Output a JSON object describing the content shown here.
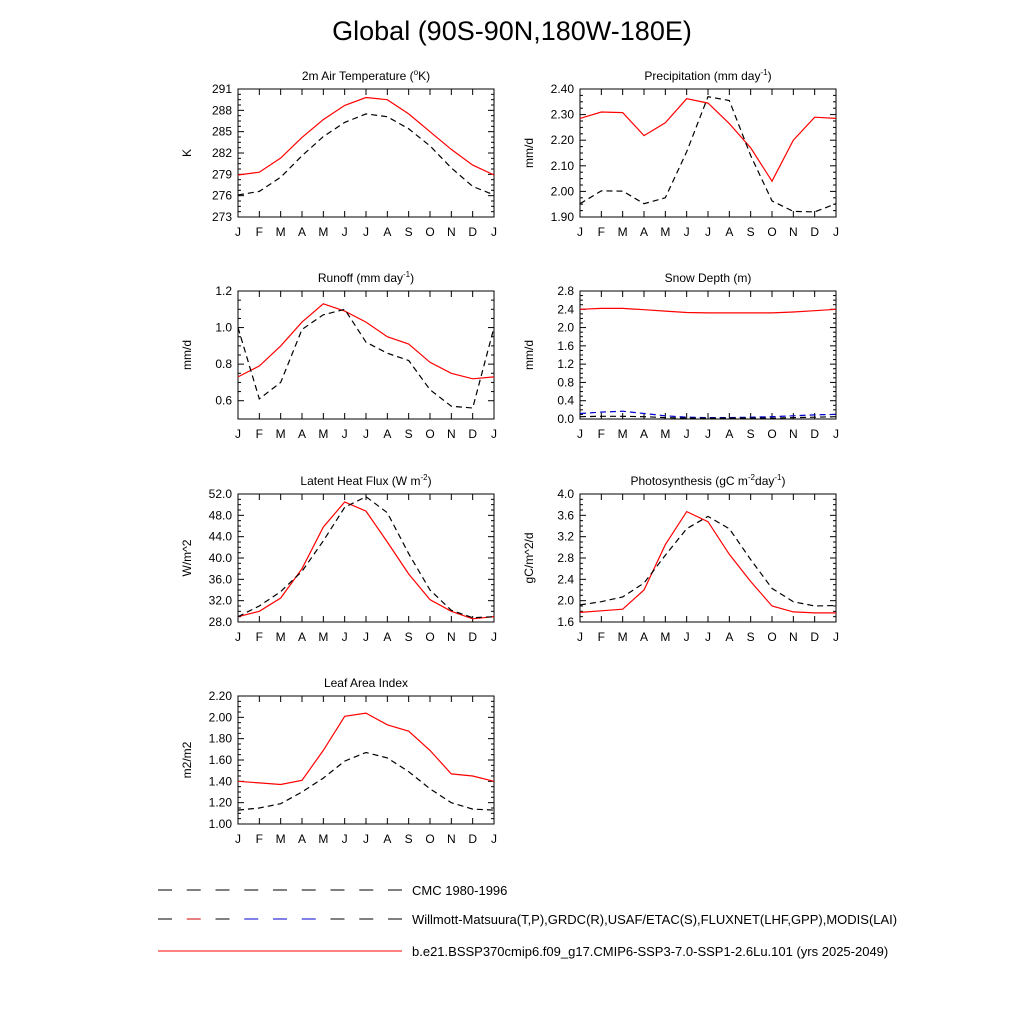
{
  "title": "Global (90S-90N,180W-180E)",
  "colors": {
    "model": "#ff0000",
    "obs": "#000000",
    "obs_alt": "#0000cc"
  },
  "months": [
    "J",
    "F",
    "M",
    "A",
    "M",
    "J",
    "J",
    "A",
    "S",
    "O",
    "N",
    "D",
    "J"
  ],
  "legend": [
    {
      "label": "CMC 1980-1996",
      "style": "dashed",
      "colors": [
        "#000000"
      ]
    },
    {
      "label": "Willmott-Matsuura(T,P),GRDC(R),USAF/ETAC(S),FLUXNET(LHF,GPP),MODIS(LAI)",
      "style": "dashed",
      "colors": [
        "#000000",
        "#cc0000",
        "#0000cc"
      ]
    },
    {
      "label": "b.e21.BSSP370cmip6.f09_g17.CMIP6-SSP3-7.0-SSP1-2.6Lu.101 (yrs 2025-2049)",
      "style": "solid",
      "colors": [
        "#ff0000"
      ]
    }
  ],
  "chart_data": [
    {
      "type": "line",
      "title": "2m Air Temperature (",
      "title_sup": "o",
      "title_after": "K)",
      "ylabel": "K",
      "ylim": [
        273,
        291
      ],
      "yticks": [
        "273",
        "276",
        "279",
        "282",
        "285",
        "288",
        "291"
      ],
      "x": [
        "J",
        "F",
        "M",
        "A",
        "M",
        "J",
        "J",
        "A",
        "S",
        "O",
        "N",
        "D",
        "J"
      ],
      "series": [
        {
          "role": "model",
          "style": "solid",
          "color": "#ff0000",
          "values": [
            278.9,
            279.3,
            281.3,
            284.2,
            286.7,
            288.7,
            289.8,
            289.5,
            287.5,
            285.0,
            282.5,
            280.3,
            278.9
          ]
        },
        {
          "role": "obs",
          "style": "dashed",
          "color": "#000000",
          "values": [
            276.1,
            276.6,
            278.6,
            281.6,
            284.3,
            286.3,
            287.5,
            287.1,
            285.4,
            283.0,
            279.9,
            277.3,
            276.1
          ]
        }
      ]
    },
    {
      "type": "line",
      "title": "Precipitation (mm day",
      "title_sup": "-1",
      "title_after": ")",
      "ylabel": "mm/d",
      "ylim": [
        1.9,
        2.4
      ],
      "yticks": [
        "1.90",
        "2.00",
        "2.10",
        "2.20",
        "2.30",
        "2.40"
      ],
      "x": [
        "J",
        "F",
        "M",
        "A",
        "M",
        "J",
        "J",
        "A",
        "S",
        "O",
        "N",
        "D",
        "J"
      ],
      "series": [
        {
          "role": "model",
          "style": "solid",
          "color": "#ff0000",
          "values": [
            2.285,
            2.31,
            2.308,
            2.218,
            2.268,
            2.362,
            2.345,
            2.265,
            2.17,
            2.04,
            2.2,
            2.29,
            2.285
          ]
        },
        {
          "role": "obs",
          "style": "dashed",
          "color": "#000000",
          "values": [
            1.952,
            2.002,
            2.001,
            1.952,
            1.975,
            2.155,
            2.37,
            2.355,
            2.14,
            1.963,
            1.922,
            1.92,
            1.952
          ]
        }
      ]
    },
    {
      "type": "line",
      "title": "Runoff (mm day",
      "title_sup": "-1",
      "title_after": ")",
      "ylabel": "mm/d",
      "ylim": [
        0.5,
        1.2
      ],
      "yticks": [
        "0.6",
        "0.8",
        "1.0",
        "1.2"
      ],
      "ytickvals": [
        0.6,
        0.8,
        1.0,
        1.2
      ],
      "x": [
        "J",
        "F",
        "M",
        "A",
        "M",
        "J",
        "J",
        "A",
        "S",
        "O",
        "N",
        "D",
        "J"
      ],
      "series": [
        {
          "role": "model",
          "style": "solid",
          "color": "#ff0000",
          "values": [
            0.73,
            0.79,
            0.9,
            1.03,
            1.13,
            1.09,
            1.03,
            0.95,
            0.91,
            0.81,
            0.75,
            0.72,
            0.73
          ]
        },
        {
          "role": "obs",
          "style": "dashed",
          "color": "#000000",
          "values": [
            1.0,
            0.61,
            0.7,
            0.99,
            1.07,
            1.1,
            0.92,
            0.86,
            0.82,
            0.66,
            0.57,
            0.56,
            1.0
          ]
        }
      ]
    },
    {
      "type": "line",
      "title": "Snow Depth (m)",
      "title_sup": "",
      "title_after": "",
      "ylabel": "mm/d",
      "ylim": [
        0.0,
        2.8
      ],
      "yticks": [
        "0.0",
        "0.4",
        "0.8",
        "1.2",
        "1.6",
        "2.0",
        "2.4",
        "2.8"
      ],
      "x": [
        "J",
        "F",
        "M",
        "A",
        "M",
        "J",
        "J",
        "A",
        "S",
        "O",
        "N",
        "D",
        "J"
      ],
      "series": [
        {
          "role": "model",
          "style": "solid",
          "color": "#ff0000",
          "values": [
            2.4,
            2.42,
            2.42,
            2.39,
            2.36,
            2.33,
            2.32,
            2.32,
            2.32,
            2.32,
            2.34,
            2.37,
            2.4
          ]
        },
        {
          "role": "obs_alt",
          "style": "dashed",
          "color": "#0000cc",
          "values": [
            0.12,
            0.15,
            0.17,
            0.12,
            0.07,
            0.04,
            0.03,
            0.03,
            0.04,
            0.05,
            0.07,
            0.09,
            0.1
          ]
        },
        {
          "role": "obs",
          "style": "dashed",
          "color": "#000000",
          "values": [
            0.05,
            0.06,
            0.06,
            0.05,
            0.03,
            0.02,
            0.02,
            0.02,
            0.02,
            0.02,
            0.03,
            0.04,
            0.05
          ]
        }
      ]
    },
    {
      "type": "line",
      "title": "Latent Heat Flux (W m",
      "title_sup": "-2",
      "title_after": ")",
      "ylabel": "W/m^2",
      "ylim": [
        28,
        52
      ],
      "yticks": [
        "28.0",
        "32.0",
        "36.0",
        "40.0",
        "44.0",
        "48.0",
        "52.0"
      ],
      "x": [
        "J",
        "F",
        "M",
        "A",
        "M",
        "J",
        "J",
        "A",
        "S",
        "O",
        "N",
        "D",
        "J"
      ],
      "series": [
        {
          "role": "model",
          "style": "solid",
          "color": "#ff0000",
          "values": [
            29.0,
            30.0,
            32.5,
            38.0,
            45.8,
            50.5,
            48.8,
            43.0,
            37.0,
            32.2,
            30.0,
            28.6,
            29.0
          ]
        },
        {
          "role": "obs",
          "style": "dashed",
          "color": "#000000",
          "values": [
            29.0,
            31.0,
            33.7,
            37.5,
            43.2,
            49.5,
            51.5,
            48.5,
            40.8,
            34.0,
            30.2,
            28.8,
            29.0
          ]
        }
      ]
    },
    {
      "type": "line",
      "title": "Photosynthesis (gC m",
      "title_sup": "-2",
      "title_after": "day",
      "title_sup2": "-1",
      "title_after2": ")",
      "ylabel": "gC/m^2/d",
      "ylim": [
        1.6,
        4.0
      ],
      "yticks": [
        "1.6",
        "2.0",
        "2.4",
        "2.8",
        "3.2",
        "3.6",
        "4.0"
      ],
      "x": [
        "J",
        "F",
        "M",
        "A",
        "M",
        "J",
        "J",
        "A",
        "S",
        "O",
        "N",
        "D",
        "J"
      ],
      "series": [
        {
          "role": "model",
          "style": "solid",
          "color": "#ff0000",
          "values": [
            1.78,
            1.81,
            1.84,
            2.2,
            3.05,
            3.67,
            3.48,
            2.87,
            2.36,
            1.9,
            1.79,
            1.77,
            1.77
          ]
        },
        {
          "role": "obs",
          "style": "dashed",
          "color": "#000000",
          "values": [
            1.92,
            1.98,
            2.07,
            2.33,
            2.85,
            3.35,
            3.58,
            3.35,
            2.77,
            2.23,
            1.98,
            1.9,
            1.91
          ]
        }
      ]
    },
    {
      "type": "line",
      "title": "Leaf Area Index",
      "title_sup": "",
      "title_after": "",
      "ylabel": "m2/m2",
      "ylim": [
        1.0,
        2.2
      ],
      "yticks": [
        "1.00",
        "1.20",
        "1.40",
        "1.60",
        "1.80",
        "2.00",
        "2.20"
      ],
      "x": [
        "J",
        "F",
        "M",
        "A",
        "M",
        "J",
        "J",
        "A",
        "S",
        "O",
        "N",
        "D",
        "J"
      ],
      "series": [
        {
          "role": "model",
          "style": "solid",
          "color": "#ff0000",
          "values": [
            1.4,
            1.385,
            1.37,
            1.41,
            1.69,
            2.01,
            2.04,
            1.93,
            1.87,
            1.69,
            1.47,
            1.45,
            1.4
          ]
        },
        {
          "role": "obs",
          "style": "dashed",
          "color": "#000000",
          "values": [
            1.13,
            1.15,
            1.19,
            1.3,
            1.43,
            1.59,
            1.67,
            1.62,
            1.49,
            1.33,
            1.2,
            1.14,
            1.13
          ]
        }
      ]
    }
  ]
}
